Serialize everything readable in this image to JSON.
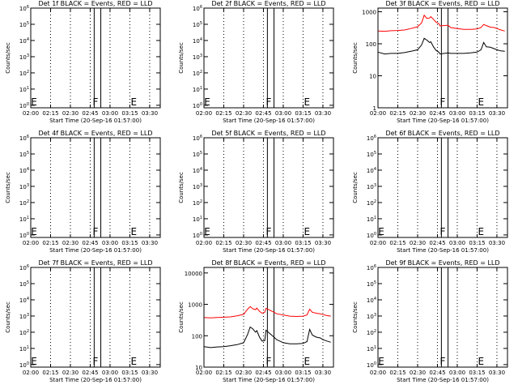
{
  "figure": {
    "background": "#ffffff",
    "axis_color": "#000000",
    "events_color": "#000000",
    "lld_color": "#ff0000"
  },
  "chart_data": [
    {
      "type": "line",
      "title": "Det 1f  BLACK = Events, RED = LLD",
      "xlabel": "Start Time (20-Sep-16 01:57:00)",
      "ylabel": "Counts/sec",
      "x_ticks": [
        "02:00",
        "02:15",
        "02:30",
        "02:45",
        "03:00",
        "03:15",
        "03:30"
      ],
      "xlim": [
        "02:00",
        "03:38"
      ],
      "y_scale": "log",
      "ylim": [
        0.7,
        1000000
      ],
      "y_ticks": [
        1,
        10,
        100,
        1000,
        10000,
        100000,
        1000000
      ],
      "y_tick_labels": [
        "10^0",
        "10^1",
        "10^2",
        "10^3",
        "10^4",
        "10^5",
        "10^6"
      ],
      "markers": [
        {
          "label": "F",
          "x": "02:49"
        },
        {
          "label": "E",
          "x": "03:18"
        }
      ],
      "shaded_interval": [
        "02:48",
        "02:53"
      ],
      "series": []
    },
    {
      "type": "line",
      "title": "Det 2f  BLACK = Events, RED = LLD",
      "xlabel": "Start Time (20-Sep-16 01:57:00)",
      "ylabel": "Counts/sec",
      "x_ticks": [
        "02:00",
        "02:15",
        "02:30",
        "02:45",
        "03:00",
        "03:15",
        "03:30"
      ],
      "xlim": [
        "02:00",
        "03:38"
      ],
      "y_scale": "log",
      "ylim": [
        0.7,
        1000000
      ],
      "y_ticks": [
        1,
        10,
        100,
        1000,
        10000,
        100000,
        1000000
      ],
      "y_tick_labels": [
        "10^0",
        "10^1",
        "10^2",
        "10^3",
        "10^4",
        "10^5",
        "10^6"
      ],
      "markers": [
        {
          "label": "F",
          "x": "02:49"
        },
        {
          "label": "E",
          "x": "03:18"
        }
      ],
      "shaded_interval": [
        "02:48",
        "02:53"
      ],
      "series": []
    },
    {
      "type": "line",
      "title": "Det 3f  BLACK = Events, RED = LLD",
      "xlabel": "Start Time (20-Sep-16 01:57:00)",
      "ylabel": "Counts/sec",
      "x_ticks": [
        "02:00",
        "02:15",
        "02:30",
        "02:45",
        "03:00",
        "03:15",
        "03:30"
      ],
      "xlim": [
        "02:00",
        "03:38"
      ],
      "y_scale": "log",
      "ylim": [
        1,
        1300
      ],
      "y_ticks": [
        1,
        10,
        100,
        1000
      ],
      "y_tick_labels": [
        "1",
        "10",
        "100",
        "1000"
      ],
      "markers": [
        {
          "label": "F",
          "x": "02:49"
        },
        {
          "label": "E",
          "x": "03:18"
        }
      ],
      "shaded_interval": [
        "02:48",
        "02:53"
      ],
      "series": [
        {
          "role": "events",
          "color": "#000000",
          "x": [
            "02:00",
            "02:05",
            "02:10",
            "02:15",
            "02:20",
            "02:25",
            "02:30",
            "02:33",
            "02:35",
            "02:37",
            "02:39",
            "02:40",
            "02:42",
            "02:44",
            "02:46",
            "02:47",
            "02:53",
            "02:55",
            "03:00",
            "03:05",
            "03:10",
            "03:15",
            "03:18",
            "03:20",
            "03:22",
            "03:25",
            "03:28",
            "03:30",
            "03:33",
            "03:36"
          ],
          "values": [
            55,
            48,
            50,
            50,
            53,
            58,
            65,
            92,
            148,
            130,
            110,
            115,
            80,
            62,
            55,
            48,
            52,
            50,
            50,
            50,
            52,
            55,
            65,
            110,
            80,
            78,
            70,
            65,
            60,
            58
          ]
        },
        {
          "role": "lld",
          "color": "#ff0000",
          "x": [
            "02:00",
            "02:05",
            "02:10",
            "02:15",
            "02:20",
            "02:25",
            "02:30",
            "02:33",
            "02:35",
            "02:37",
            "02:39",
            "02:40",
            "02:42",
            "02:44",
            "02:46",
            "02:47",
            "02:53",
            "02:55",
            "03:00",
            "03:05",
            "03:10",
            "03:15",
            "03:18",
            "03:20",
            "03:22",
            "03:25",
            "03:28",
            "03:30",
            "03:33",
            "03:36"
          ],
          "values": [
            250,
            245,
            255,
            260,
            270,
            300,
            340,
            450,
            780,
            620,
            640,
            700,
            580,
            470,
            430,
            360,
            380,
            320,
            300,
            280,
            280,
            290,
            320,
            400,
            370,
            330,
            320,
            300,
            270,
            250
          ]
        }
      ]
    },
    {
      "type": "line",
      "title": "Det 4f  BLACK = Events, RED = LLD",
      "xlabel": "Start Time (20-Sep-16 01:57:00)",
      "ylabel": "Counts/sec",
      "x_ticks": [
        "02:00",
        "02:15",
        "02:30",
        "02:45",
        "03:00",
        "03:15",
        "03:30"
      ],
      "xlim": [
        "02:00",
        "03:38"
      ],
      "y_scale": "log",
      "ylim": [
        0.7,
        1000000
      ],
      "y_ticks": [
        1,
        10,
        100,
        1000,
        10000,
        100000,
        1000000
      ],
      "y_tick_labels": [
        "10^0",
        "10^1",
        "10^2",
        "10^3",
        "10^4",
        "10^5",
        "10^6"
      ],
      "markers": [
        {
          "label": "F",
          "x": "02:49"
        },
        {
          "label": "E",
          "x": "03:18"
        }
      ],
      "shaded_interval": [
        "02:48",
        "02:53"
      ],
      "series": []
    },
    {
      "type": "line",
      "title": "Det 5f  BLACK = Events, RED = LLD",
      "xlabel": "Start Time (20-Sep-16 01:57:00)",
      "ylabel": "Counts/sec",
      "x_ticks": [
        "02:00",
        "02:15",
        "02:30",
        "02:45",
        "03:00",
        "03:15",
        "03:30"
      ],
      "xlim": [
        "02:00",
        "03:38"
      ],
      "y_scale": "log",
      "ylim": [
        0.7,
        1000000
      ],
      "y_ticks": [
        1,
        10,
        100,
        1000,
        10000,
        100000,
        1000000
      ],
      "y_tick_labels": [
        "10^0",
        "10^1",
        "10^2",
        "10^3",
        "10^4",
        "10^5",
        "10^6"
      ],
      "markers": [
        {
          "label": "F",
          "x": "02:49"
        },
        {
          "label": "E",
          "x": "03:18"
        }
      ],
      "shaded_interval": [
        "02:48",
        "02:53"
      ],
      "series": []
    },
    {
      "type": "line",
      "title": "Det 6f  BLACK = Events, RED = LLD",
      "xlabel": "Start Time (20-Sep-16 01:57:00)",
      "ylabel": "Counts/sec",
      "x_ticks": [
        "02:00",
        "02:15",
        "02:30",
        "02:45",
        "03:00",
        "03:15",
        "03:30"
      ],
      "xlim": [
        "02:00",
        "03:38"
      ],
      "y_scale": "log",
      "ylim": [
        0.7,
        1000000
      ],
      "y_ticks": [
        1,
        10,
        100,
        1000,
        10000,
        100000,
        1000000
      ],
      "y_tick_labels": [
        "10^0",
        "10^1",
        "10^2",
        "10^3",
        "10^4",
        "10^5",
        "10^6"
      ],
      "markers": [
        {
          "label": "F",
          "x": "02:49"
        },
        {
          "label": "E",
          "x": "03:18"
        }
      ],
      "shaded_interval": [
        "02:48",
        "02:53"
      ],
      "series": []
    },
    {
      "type": "line",
      "title": "Det 7f  BLACK = Events, RED = LLD",
      "xlabel": "Start Time (20-Sep-16 01:57:00)",
      "ylabel": "Counts/sec",
      "x_ticks": [
        "02:00",
        "02:15",
        "02:30",
        "02:45",
        "03:00",
        "03:15",
        "03:30"
      ],
      "xlim": [
        "02:00",
        "03:38"
      ],
      "y_scale": "log",
      "ylim": [
        0.7,
        1000000
      ],
      "y_ticks": [
        1,
        10,
        100,
        1000,
        10000,
        100000,
        1000000
      ],
      "y_tick_labels": [
        "10^0",
        "10^1",
        "10^2",
        "10^3",
        "10^4",
        "10^5",
        "10^6"
      ],
      "markers": [
        {
          "label": "F",
          "x": "02:49"
        },
        {
          "label": "E",
          "x": "03:18"
        }
      ],
      "shaded_interval": [
        "02:48",
        "02:53"
      ],
      "series": []
    },
    {
      "type": "line",
      "title": "Det 8f  BLACK = Events, RED = LLD",
      "xlabel": "Start Time (20-Sep-16 01:57:00)",
      "ylabel": "Counts/sec",
      "x_ticks": [
        "02:00",
        "02:15",
        "02:30",
        "02:45",
        "03:00",
        "03:15",
        "03:30"
      ],
      "xlim": [
        "02:00",
        "03:38"
      ],
      "y_scale": "log",
      "ylim": [
        10,
        15000
      ],
      "y_ticks": [
        10,
        100,
        1000,
        10000
      ],
      "y_tick_labels": [
        "10",
        "100",
        "1000",
        "10000"
      ],
      "markers": [
        {
          "label": "F",
          "x": "02:49"
        },
        {
          "label": "E",
          "x": "03:18"
        }
      ],
      "shaded_interval": [
        "02:48",
        "02:53"
      ],
      "series": [
        {
          "role": "events",
          "color": "#000000",
          "x": [
            "02:00",
            "02:05",
            "02:10",
            "02:15",
            "02:20",
            "02:25",
            "02:30",
            "02:33",
            "02:35",
            "02:37",
            "02:39",
            "02:40",
            "02:42",
            "02:44",
            "02:46",
            "02:47",
            "02:53",
            "02:55",
            "03:00",
            "03:05",
            "03:10",
            "03:15",
            "03:18",
            "03:20",
            "03:22",
            "03:25",
            "03:28",
            "03:30",
            "03:33",
            "03:36"
          ],
          "values": [
            45,
            42,
            44,
            45,
            48,
            52,
            60,
            110,
            190,
            165,
            130,
            145,
            90,
            68,
            70,
            150,
            90,
            75,
            60,
            55,
            55,
            57,
            65,
            160,
            105,
            90,
            85,
            75,
            68,
            62
          ]
        },
        {
          "role": "lld",
          "color": "#ff0000",
          "x": [
            "02:00",
            "02:05",
            "02:10",
            "02:15",
            "02:20",
            "02:25",
            "02:30",
            "02:33",
            "02:35",
            "02:37",
            "02:39",
            "02:40",
            "02:42",
            "02:44",
            "02:46",
            "02:47",
            "02:53",
            "02:55",
            "03:00",
            "03:05",
            "03:10",
            "03:15",
            "03:18",
            "03:20",
            "03:22",
            "03:25",
            "03:28",
            "03:30",
            "03:33",
            "03:36"
          ],
          "values": [
            380,
            370,
            380,
            390,
            400,
            430,
            480,
            700,
            850,
            720,
            680,
            760,
            600,
            520,
            560,
            750,
            560,
            500,
            460,
            420,
            410,
            420,
            460,
            700,
            560,
            520,
            500,
            470,
            440,
            420
          ]
        }
      ]
    },
    {
      "type": "line",
      "title": "Det 9f  BLACK = Events, RED = LLD",
      "xlabel": "Start Time (20-Sep-16 01:57:00)",
      "ylabel": "Counts/sec",
      "x_ticks": [
        "02:00",
        "02:15",
        "02:30",
        "02:45",
        "03:00",
        "03:15",
        "03:30"
      ],
      "xlim": [
        "02:00",
        "03:38"
      ],
      "y_scale": "log",
      "ylim": [
        0.7,
        1000000
      ],
      "y_ticks": [
        1,
        10,
        100,
        1000,
        10000,
        100000,
        1000000
      ],
      "y_tick_labels": [
        "10^0",
        "10^1",
        "10^2",
        "10^3",
        "10^4",
        "10^5",
        "10^6"
      ],
      "markers": [
        {
          "label": "F",
          "x": "02:49"
        },
        {
          "label": "E",
          "x": "03:18"
        }
      ],
      "shaded_interval": [
        "02:48",
        "02:53"
      ],
      "series": []
    }
  ]
}
